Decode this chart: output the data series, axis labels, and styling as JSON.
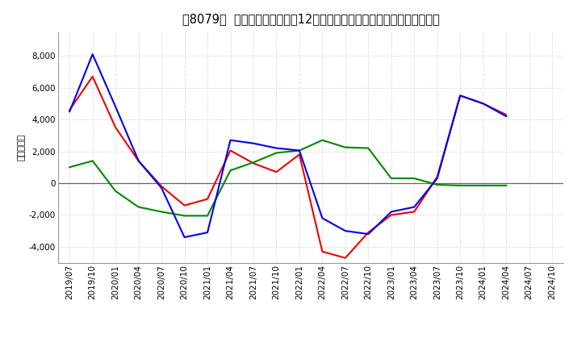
{
  "title": "［8079］  キャッシュフローの12か月移動合計の対前年同期増減額の推移",
  "ylabel": "（百万円）",
  "background_color": "#ffffff",
  "grid_color": "#bbbbbb",
  "x_labels": [
    "2019/07",
    "2019/10",
    "2020/01",
    "2020/04",
    "2020/07",
    "2020/10",
    "2021/01",
    "2021/04",
    "2021/07",
    "2021/10",
    "2022/01",
    "2022/04",
    "2022/07",
    "2022/10",
    "2023/01",
    "2023/04",
    "2023/07",
    "2023/10",
    "2024/01",
    "2024/04",
    "2024/07",
    "2024/10"
  ],
  "series": {
    "営業CF": {
      "color": "#ee0000",
      "data": [
        4600,
        6700,
        3500,
        1400,
        -200,
        -1400,
        -1000,
        2050,
        1250,
        700,
        1800,
        -4300,
        -4700,
        -3100,
        -2000,
        -1800,
        400,
        5500,
        5000,
        4300,
        null,
        null
      ]
    },
    "投資CF": {
      "color": "#008800",
      "data": [
        1000,
        1400,
        -500,
        -1500,
        -1800,
        -2050,
        -2050,
        800,
        1300,
        1900,
        2050,
        2700,
        2250,
        2200,
        300,
        300,
        -100,
        -150,
        -150,
        -150,
        null,
        null
      ]
    },
    "フリーCF": {
      "color": "#0000ee",
      "data": [
        4500,
        8100,
        4800,
        1400,
        -300,
        -3400,
        -3100,
        2700,
        2500,
        2200,
        2050,
        -2200,
        -3000,
        -3200,
        -1800,
        -1500,
        300,
        5500,
        5000,
        4200,
        null,
        null
      ]
    }
  },
  "ylim": [
    -5000,
    9500
  ],
  "yticks": [
    -4000,
    -2000,
    0,
    2000,
    4000,
    6000,
    8000
  ],
  "title_fontsize": 10.5,
  "ylabel_fontsize": 8,
  "tick_fontsize": 7.5,
  "legend_fontsize": 9
}
